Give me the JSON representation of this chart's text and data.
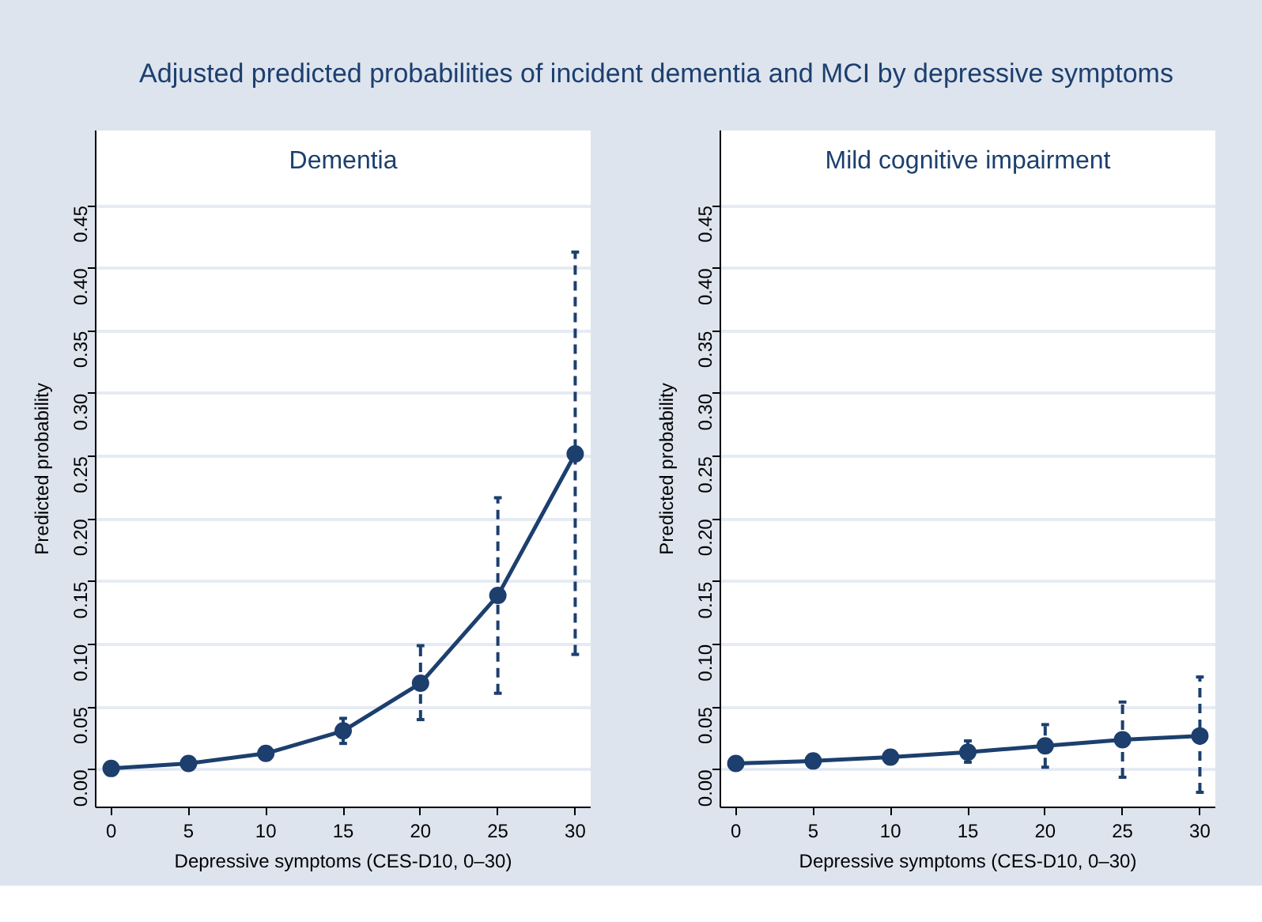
{
  "chart_data": [
    {
      "type": "line",
      "title": "Adjusted predicted probabilities of incident dementia and MCI by depressive symptoms",
      "subtitle": "Dementia",
      "xlabel": "Depressive symptoms (CES-D10, 0–30)",
      "ylabel": "Predicted probability",
      "x": [
        0,
        5,
        10,
        15,
        20,
        25,
        30
      ],
      "series": [
        {
          "color": "#1c3f6e",
          "values": [
            0.001,
            0.005,
            0.013,
            0.031,
            0.069,
            0.139,
            0.252
          ],
          "errors": [
            null,
            null,
            [
              0.009,
              0.017
            ],
            [
              0.021,
              0.041
            ],
            [
              0.04,
              0.099
            ],
            [
              0.061,
              0.217
            ],
            [
              0.092,
              0.413
            ]
          ]
        }
      ],
      "xlim": [
        -1,
        31
      ],
      "ylim": [
        -0.03,
        0.51
      ],
      "xticks": [
        0,
        5,
        10,
        15,
        20,
        25,
        30
      ],
      "yticks": [
        {
          "value": 0,
          "label": "0.00"
        },
        {
          "value": 0.05,
          "label": "0.05"
        },
        {
          "value": 0.1,
          "label": "0.10"
        },
        {
          "value": 0.15,
          "label": "0.15"
        },
        {
          "value": 0.2,
          "label": "0.20"
        },
        {
          "value": 0.25,
          "label": "0.25"
        },
        {
          "value": 0.3,
          "label": "0.30"
        },
        {
          "value": 0.35,
          "label": "0.35"
        },
        {
          "value": 0.4,
          "label": "0.40"
        },
        {
          "value": 0.45,
          "label": "0.45"
        }
      ],
      "grid": "y",
      "marker": "circle",
      "line_style": "solid"
    },
    {
      "type": "line",
      "subtitle": "Mild cognitive impairment",
      "xlabel": "Depressive symptoms (CES-D10, 0–30)",
      "ylabel": "Predicted probability",
      "x": [
        0,
        5,
        10,
        15,
        20,
        25,
        30
      ],
      "series": [
        {
          "color": "#1c3f6e",
          "values": [
            0.005,
            0.007,
            0.01,
            0.014,
            0.019,
            0.024,
            0.027
          ],
          "errors": [
            null,
            null,
            [
              0.007,
              0.013
            ],
            [
              0.006,
              0.023
            ],
            [
              0.002,
              0.036
            ],
            [
              -0.006,
              0.054
            ],
            [
              -0.018,
              0.074
            ]
          ]
        }
      ],
      "xlim": [
        -1,
        31
      ],
      "ylim": [
        -0.03,
        0.51
      ],
      "xticks": [
        0,
        5,
        10,
        15,
        20,
        25,
        30
      ],
      "yticks": [
        {
          "value": 0,
          "label": "0.00"
        },
        {
          "value": 0.05,
          "label": "0.05"
        },
        {
          "value": 0.1,
          "label": "0.10"
        },
        {
          "value": 0.15,
          "label": "0.15"
        },
        {
          "value": 0.2,
          "label": "0.20"
        },
        {
          "value": 0.25,
          "label": "0.25"
        },
        {
          "value": 0.3,
          "label": "0.30"
        },
        {
          "value": 0.35,
          "label": "0.35"
        },
        {
          "value": 0.4,
          "label": "0.40"
        },
        {
          "value": 0.45,
          "label": "0.45"
        }
      ],
      "grid": "y",
      "marker": "circle",
      "line_style": "solid"
    }
  ]
}
